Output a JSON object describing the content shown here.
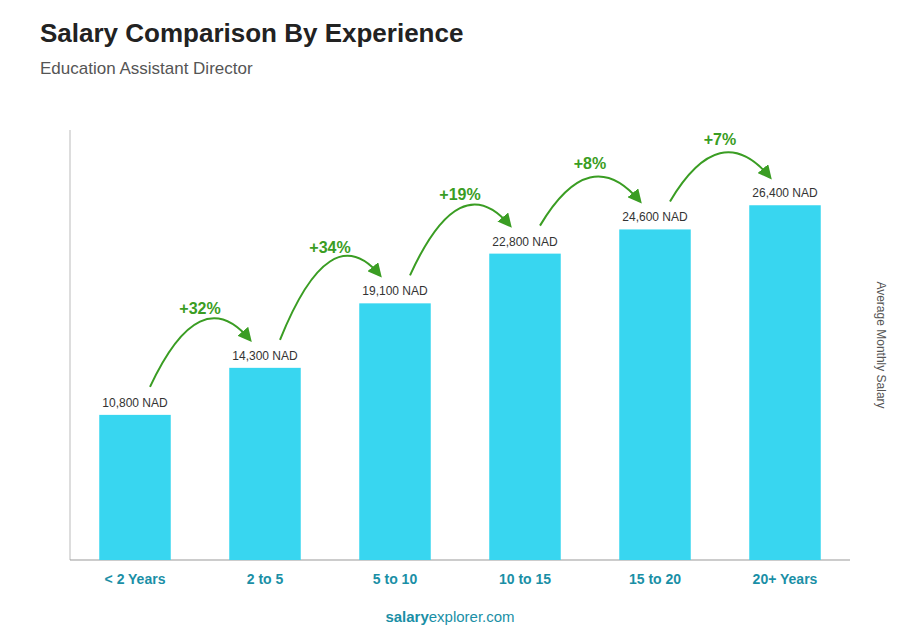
{
  "chart_data": {
    "type": "bar",
    "title": "Salary Comparison By Experience",
    "subtitle": "Education Assistant Director",
    "ylabel": "Average Monthly Salary",
    "categories": [
      "< 2 Years",
      "2 to 5",
      "5 to 10",
      "10 to 15",
      "15 to 20",
      "20+ Years"
    ],
    "values": [
      10800,
      14300,
      19100,
      22800,
      24600,
      26400
    ],
    "value_labels": [
      "10,800 NAD",
      "14,300 NAD",
      "19,100 NAD",
      "22,800 NAD",
      "24,600 NAD",
      "26,400 NAD"
    ],
    "data_labels": true,
    "annotations": [
      "+32%",
      "+34%",
      "+19%",
      "+8%",
      "+7%"
    ],
    "color": "#38d6f0",
    "ylim": [
      0,
      32000
    ],
    "tick_labels": "x",
    "grid": false,
    "footer": [
      "salary",
      "explorer.com"
    ]
  }
}
